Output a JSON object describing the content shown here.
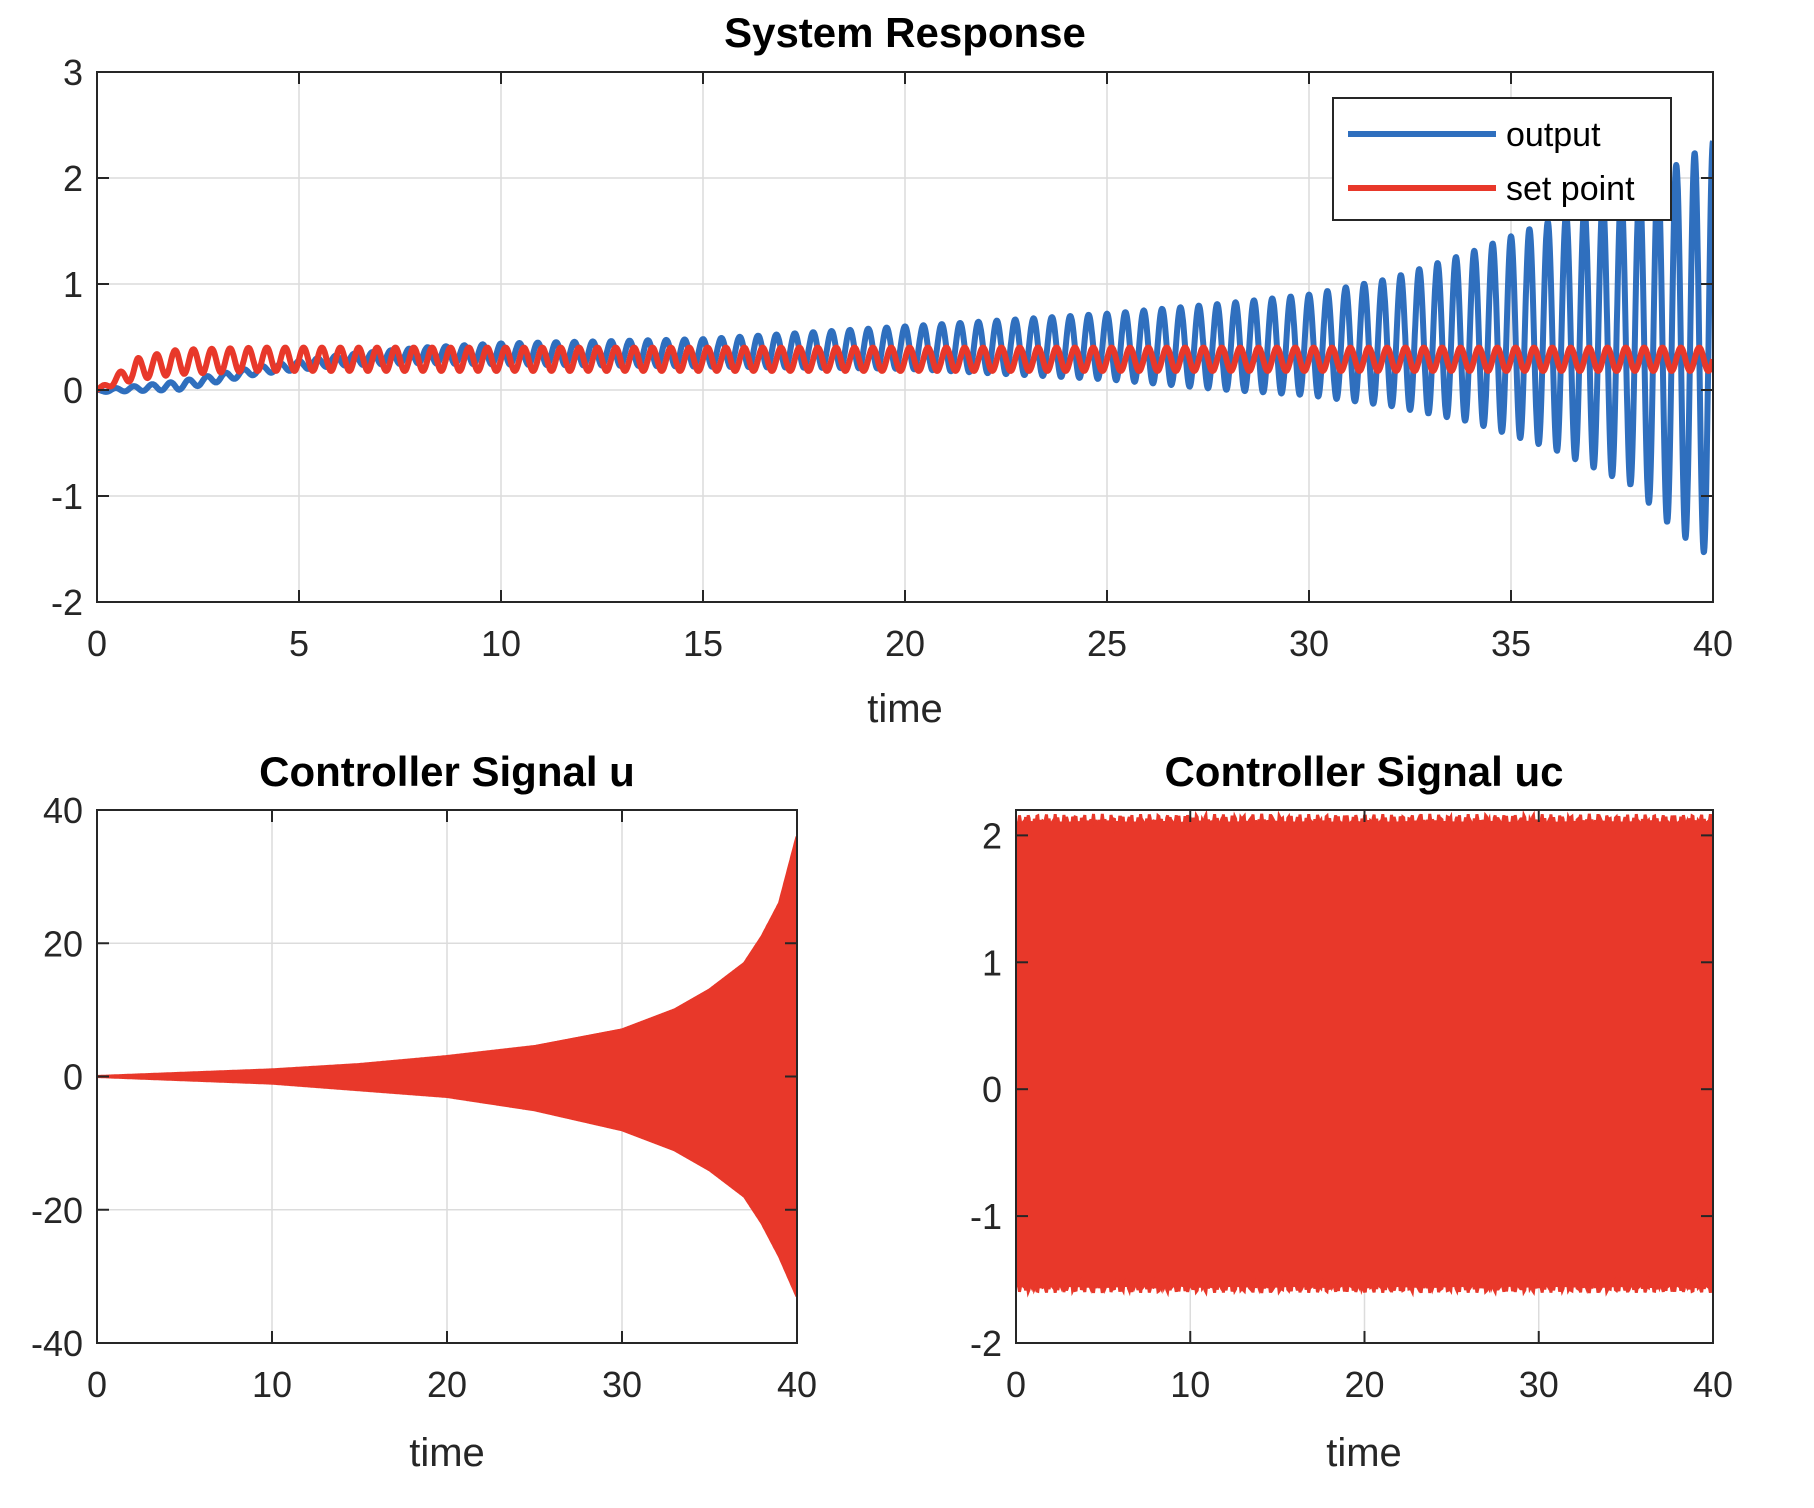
{
  "chart_data": [
    {
      "id": "top",
      "type": "line",
      "title": "System Response",
      "xlabel": "time",
      "ylabel": "",
      "xlim": [
        0,
        40
      ],
      "ylim": [
        -2,
        3
      ],
      "xticks": [
        0,
        5,
        10,
        15,
        20,
        25,
        30,
        35,
        40
      ],
      "yticks": [
        -2,
        -1,
        0,
        1,
        2,
        3
      ],
      "grid": true,
      "legend": "top-right",
      "series": [
        {
          "name": "output",
          "color": "#2f6fbe",
          "model": "growing_oscillation",
          "freq_hz": 2.2,
          "x": [
            0,
            2,
            4,
            6,
            8,
            10,
            15,
            20,
            25,
            28,
            30,
            32,
            34,
            36,
            38,
            39,
            40
          ],
          "upper": [
            0.0,
            0.08,
            0.22,
            0.33,
            0.4,
            0.44,
            0.48,
            0.6,
            0.72,
            0.82,
            0.9,
            1.05,
            1.3,
            1.6,
            1.9,
            2.1,
            2.35
          ],
          "lower": [
            -0.02,
            0.0,
            0.15,
            0.23,
            0.25,
            0.24,
            0.22,
            0.2,
            0.1,
            0.0,
            -0.05,
            -0.15,
            -0.3,
            -0.55,
            -0.9,
            -1.3,
            -1.6
          ]
        },
        {
          "name": "set point",
          "color": "#e8382a",
          "model": "steady_oscillation",
          "freq_hz": 2.2,
          "x": [
            0,
            1,
            2,
            4,
            40
          ],
          "upper": [
            0.0,
            0.3,
            0.38,
            0.4,
            0.4
          ],
          "lower": [
            0.0,
            0.1,
            0.15,
            0.18,
            0.18
          ]
        }
      ]
    },
    {
      "id": "bottom-left",
      "type": "line",
      "title": "Controller Signal  u",
      "xlabel": "time",
      "ylabel": "",
      "xlim": [
        0,
        40
      ],
      "ylim": [
        -40,
        40
      ],
      "xticks": [
        0,
        10,
        20,
        30,
        40
      ],
      "yticks": [
        -40,
        -20,
        0,
        20,
        40
      ],
      "grid": true,
      "series": [
        {
          "color": "#e8382a",
          "model": "filled_envelope",
          "x": [
            0,
            5,
            10,
            15,
            20,
            25,
            30,
            33,
            35,
            37,
            38,
            39,
            40
          ],
          "upper": [
            0,
            0.5,
            1.0,
            1.8,
            3.0,
            4.5,
            7.0,
            10.0,
            13.0,
            17.0,
            21.0,
            26.0,
            36.0
          ],
          "lower": [
            0,
            -0.5,
            -1.0,
            -2.0,
            -3.0,
            -5.0,
            -8.0,
            -11.0,
            -14.0,
            -18.0,
            -22.0,
            -27.0,
            -33.0
          ]
        }
      ]
    },
    {
      "id": "bottom-right",
      "type": "line",
      "title": "Controller Signal  uc",
      "xlabel": "time",
      "ylabel": "",
      "xlim": [
        0,
        40
      ],
      "ylim": [
        -2,
        2.2
      ],
      "xticks": [
        0,
        10,
        20,
        30,
        40
      ],
      "yticks": [
        -2,
        -1,
        0,
        1,
        2
      ],
      "grid": true,
      "series": [
        {
          "color": "#e8382a",
          "model": "filled_band",
          "x": [
            0,
            0.1,
            40
          ],
          "upper": [
            0.3,
            2.1,
            2.1
          ],
          "lower": [
            0.3,
            -1.55,
            -1.55
          ]
        }
      ]
    }
  ]
}
